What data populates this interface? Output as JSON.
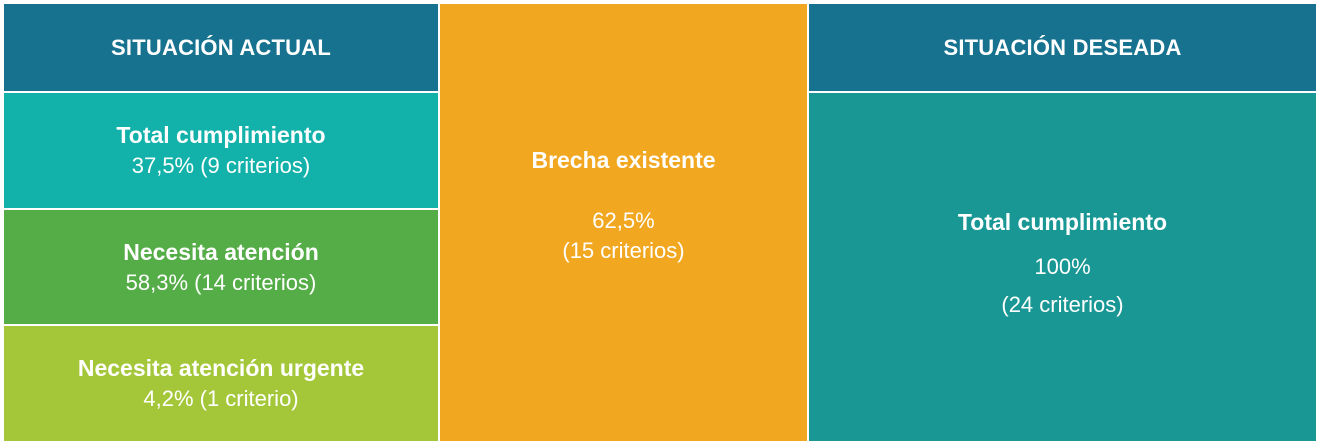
{
  "colors": {
    "header": "#16728f",
    "total": "#12b2ab",
    "attention": "#55ad47",
    "urgent": "#a4c73a",
    "gap": "#f2a721",
    "desired": "#199794"
  },
  "current": {
    "header": "SITUACIÓN ACTUAL",
    "rows": [
      {
        "title": "Total cumplimiento",
        "value": "37,5% (9 criterios)"
      },
      {
        "title": "Necesita atención",
        "value": "58,3% (14 criterios)"
      },
      {
        "title": "Necesita atención urgente",
        "value": "4,2% (1 criterio)"
      }
    ]
  },
  "gap": {
    "title": "Brecha existente",
    "percent": "62,5%",
    "criteria": "(15 criterios)"
  },
  "desired": {
    "header": "SITUACIÓN DESEADA",
    "title": "Total cumplimiento",
    "percent": "100%",
    "criteria": "(24 criterios)"
  }
}
